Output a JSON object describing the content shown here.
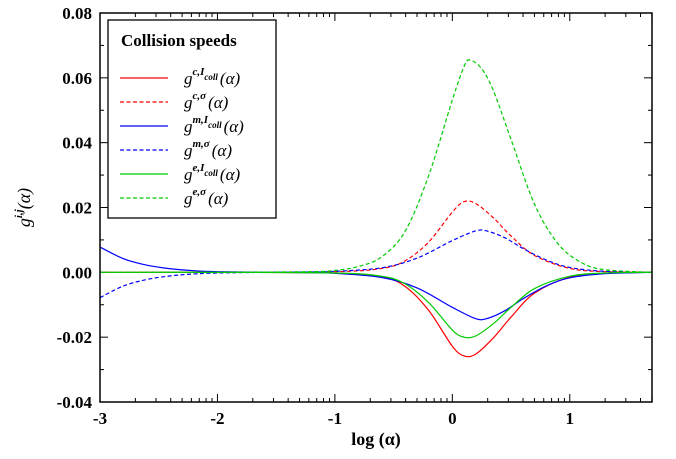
{
  "chart_data": {
    "type": "line",
    "xlabel": "log (α)",
    "ylabel_base": "g",
    "ylabel_sup": "i,j",
    "ylabel_arg": "(α)",
    "xlim": [
      -3,
      1.7
    ],
    "ylim": [
      -0.04,
      0.08
    ],
    "x_ticks": [
      -3,
      -2,
      -1,
      0,
      1
    ],
    "x_tick_labels": [
      "-3",
      "-2",
      "-1",
      "0",
      "1"
    ],
    "y_ticks": [
      -0.04,
      -0.02,
      0.0,
      0.02,
      0.04,
      0.06,
      0.08
    ],
    "y_tick_labels": [
      "-0.04",
      "-0.02",
      "0.00",
      "0.02",
      "0.04",
      "0.06",
      "0.08"
    ],
    "grid": false,
    "legend": {
      "title": "Collision speeds",
      "placement": "top-left"
    },
    "series": [
      {
        "name": "g^{c,Icoll}(α)",
        "label_base": "g",
        "label_sup": "c,I",
        "label_sub": "coll",
        "label_arg": "(α)",
        "color": "#ff0000",
        "dash": "solid",
        "x": [
          -3.0,
          -2.0,
          -1.0,
          -0.6,
          -0.4,
          -0.2,
          0.0,
          0.1,
          0.2,
          0.35,
          0.5,
          0.7,
          1.0,
          1.3,
          1.7
        ],
        "y": [
          0.0,
          0.0,
          -0.0002,
          -0.0014,
          -0.0044,
          -0.0118,
          -0.0228,
          -0.0258,
          -0.0252,
          -0.0202,
          -0.0138,
          -0.0064,
          -0.0015,
          -0.0003,
          0.0
        ]
      },
      {
        "name": "g^{c,σ}(α)",
        "label_base": "g",
        "label_sup": "c,σ",
        "label_sub": "",
        "label_arg": "(α)",
        "color": "#ff0000",
        "dash": "dashed",
        "x": [
          -3.0,
          -2.0,
          -1.0,
          -0.6,
          -0.4,
          -0.2,
          0.0,
          0.1,
          0.2,
          0.35,
          0.5,
          0.7,
          1.0,
          1.3,
          1.7
        ],
        "y": [
          0.0,
          0.0,
          0.0002,
          0.0012,
          0.0036,
          0.0094,
          0.0186,
          0.0218,
          0.0212,
          0.0168,
          0.0112,
          0.0052,
          0.0012,
          0.0002,
          0.0
        ]
      },
      {
        "name": "g^{m,Icoll}(α)",
        "label_base": "g",
        "label_sup": "m,I",
        "label_sub": "coll",
        "label_arg": "(α)",
        "color": "#0000ff",
        "dash": "solid",
        "x": [
          -3.0,
          -2.8,
          -2.6,
          -2.4,
          -2.2,
          -2.0,
          -1.6,
          -1.2,
          -1.0,
          -0.6,
          -0.3,
          0.0,
          0.2,
          0.3,
          0.45,
          0.6,
          0.8,
          1.0,
          1.3,
          1.7
        ],
        "y": [
          0.0078,
          0.0042,
          0.0022,
          0.0011,
          0.0005,
          0.0002,
          0.0,
          -0.0001,
          -0.0003,
          -0.0016,
          -0.0048,
          -0.0108,
          -0.0143,
          -0.0142,
          -0.0118,
          -0.0082,
          -0.0042,
          -0.0017,
          -0.0004,
          0.0
        ]
      },
      {
        "name": "g^{m,σ}(α)",
        "label_base": "g",
        "label_sup": "m,σ",
        "label_sub": "",
        "label_arg": "(α)",
        "color": "#0000ff",
        "dash": "dashed",
        "x": [
          -3.0,
          -2.8,
          -2.6,
          -2.4,
          -2.2,
          -2.0,
          -1.6,
          -1.2,
          -1.0,
          -0.6,
          -0.3,
          0.0,
          0.2,
          0.3,
          0.45,
          0.6,
          0.8,
          1.0,
          1.3,
          1.7
        ],
        "y": [
          -0.0078,
          -0.0042,
          -0.0022,
          -0.0011,
          -0.0005,
          -0.0002,
          0.0,
          0.0001,
          0.0003,
          0.0014,
          0.0044,
          0.0098,
          0.0128,
          0.0127,
          0.0106,
          0.0074,
          0.0038,
          0.0015,
          0.0003,
          0.0
        ]
      },
      {
        "name": "g^{e,Icoll}(α)",
        "label_base": "g",
        "label_sup": "e,I",
        "label_sub": "coll",
        "label_arg": "(α)",
        "color": "#00cc00",
        "dash": "solid",
        "x": [
          -3.0,
          -2.0,
          -1.0,
          -0.6,
          -0.4,
          -0.2,
          0.0,
          0.1,
          0.2,
          0.35,
          0.5,
          0.7,
          1.0,
          1.3,
          1.7
        ],
        "y": [
          0.0,
          0.0,
          -0.0002,
          -0.0012,
          -0.0036,
          -0.0094,
          -0.0178,
          -0.02,
          -0.0196,
          -0.0158,
          -0.0108,
          -0.005,
          -0.0012,
          -0.0002,
          0.0
        ]
      },
      {
        "name": "g^{e,σ}(α)",
        "label_base": "g",
        "label_sup": "e,σ",
        "label_sub": "",
        "label_arg": "(α)",
        "color": "#00cc00",
        "dash": "dashed",
        "x": [
          -3.0,
          -2.0,
          -1.2,
          -1.0,
          -0.8,
          -0.6,
          -0.4,
          -0.2,
          0.0,
          0.1,
          0.15,
          0.25,
          0.35,
          0.5,
          0.7,
          0.9,
          1.1,
          1.3,
          1.7
        ],
        "y": [
          0.0,
          0.0,
          0.0002,
          0.0006,
          0.0018,
          0.0048,
          0.0128,
          0.03,
          0.0532,
          0.0635,
          0.0655,
          0.0628,
          0.056,
          0.041,
          0.021,
          0.0088,
          0.003,
          0.0008,
          0.0
        ]
      }
    ]
  }
}
